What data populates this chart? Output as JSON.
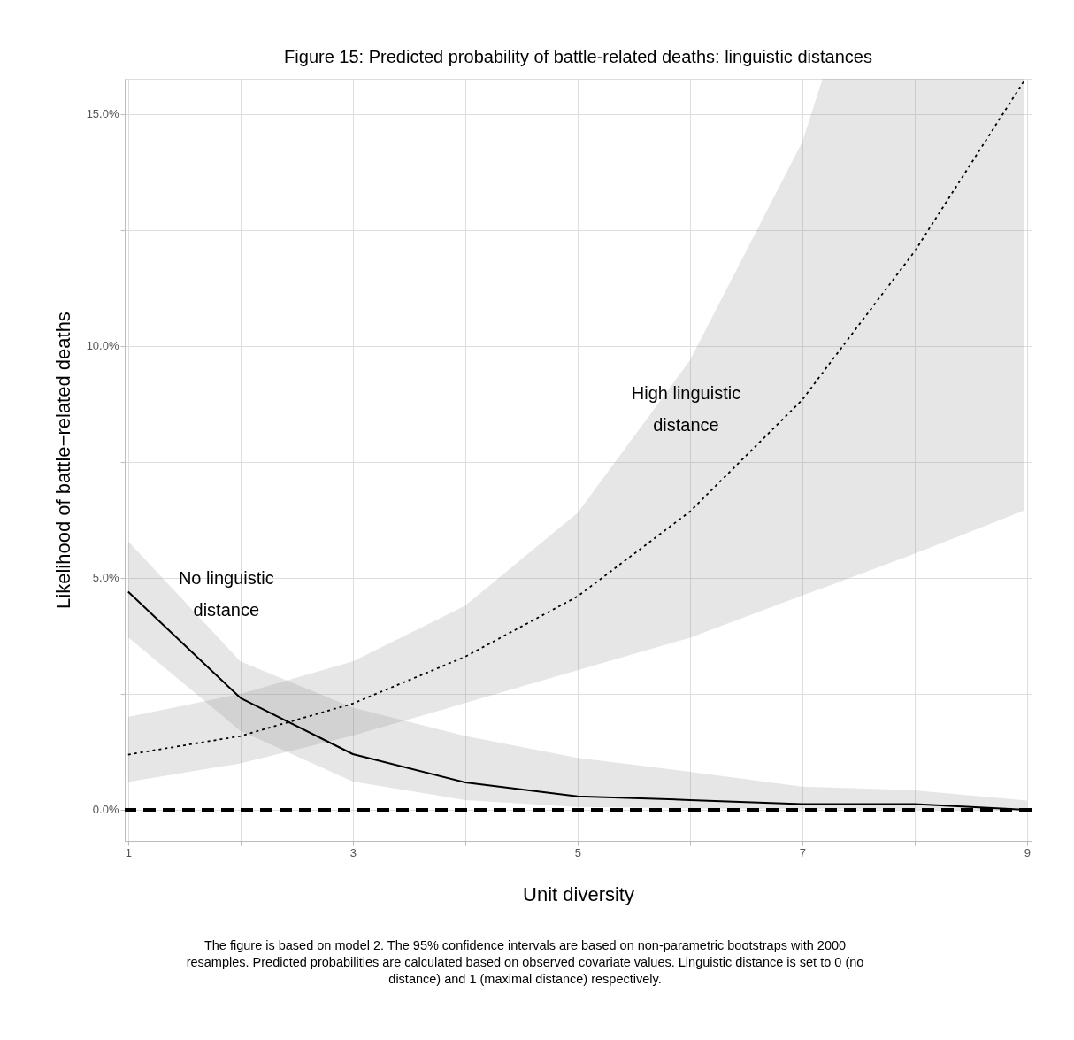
{
  "chart_data": {
    "type": "line",
    "title": "Figure 15: Predicted probability of battle-related deaths: linguistic distances",
    "xlabel": "Unit diversity",
    "ylabel": "Likelihood of battle−related deaths",
    "x": [
      1,
      2,
      3,
      4,
      5,
      6,
      7,
      8,
      9
    ],
    "series": [
      {
        "color": "#000000",
        "line_style": "solid",
        "values": [
          4.7,
          2.41,
          1.2,
          0.59,
          0.29,
          0.21,
          0.12,
          0.12,
          0
        ],
        "lower": [
          3.72,
          1.7,
          0.61,
          0.21,
          0.06,
          0.03,
          0.01,
          0,
          0
        ],
        "upper": [
          5.79,
          3.2,
          2.2,
          1.59,
          1.12,
          0.82,
          0.5,
          0.42,
          0.2
        ]
      },
      {
        "color": "#000000",
        "line_style": "dotted",
        "x": [
          1,
          2,
          3,
          4,
          5,
          6,
          7,
          7.18,
          8,
          8.97
        ],
        "values": [
          1.19,
          1.59,
          2.29,
          3.3,
          4.6,
          6.43,
          8.84,
          9.42,
          12.04,
          15.7
        ],
        "lower": [
          0.6,
          1.0,
          1.6,
          2.3,
          3.01,
          3.71,
          4.62,
          4.78,
          5.52,
          6.45
        ],
        "upper": [
          2.0,
          2.5,
          3.2,
          4.4,
          6.4,
          9.69,
          14.4,
          15.76,
          15.76,
          15.76
        ]
      }
    ],
    "xlim": [
      0.97,
      9.04
    ],
    "xticks": [
      1,
      {
        "value": 2,
        "label": null
      },
      3,
      {
        "value": 4,
        "label": null
      },
      5,
      {
        "value": 6,
        "label": null
      },
      7,
      {
        "value": 8,
        "label": null
      },
      9
    ],
    "ylim": [
      -0.67,
      15.76
    ],
    "yticks": [
      {
        "value": 0,
        "label": "0.0%"
      },
      {
        "value": 2.5,
        "label": null
      },
      {
        "value": 5,
        "label": "5.0%"
      },
      {
        "value": 7.5,
        "label": null
      },
      {
        "value": 10,
        "label": "10.0%"
      },
      {
        "value": 12.5,
        "label": null
      },
      {
        "value": 15,
        "label": "15.0%"
      }
    ],
    "grid": true,
    "ref_lines": [
      {
        "axis": "y",
        "value": 0,
        "color": "#000000",
        "line_style": "dashed"
      }
    ],
    "annotations": [
      "No linguistic\ndistance",
      "High linguistic\ndistance",
      "The figure is based on model 2. The 95% confidence intervals are based on non-parametric bootstraps with 2000\nresamples. Predicted probabilities are calculated based on observed covariate values. Linguistic distance is set to 0 (no\ndistance) and 1 (maximal distance) respectively."
    ]
  }
}
